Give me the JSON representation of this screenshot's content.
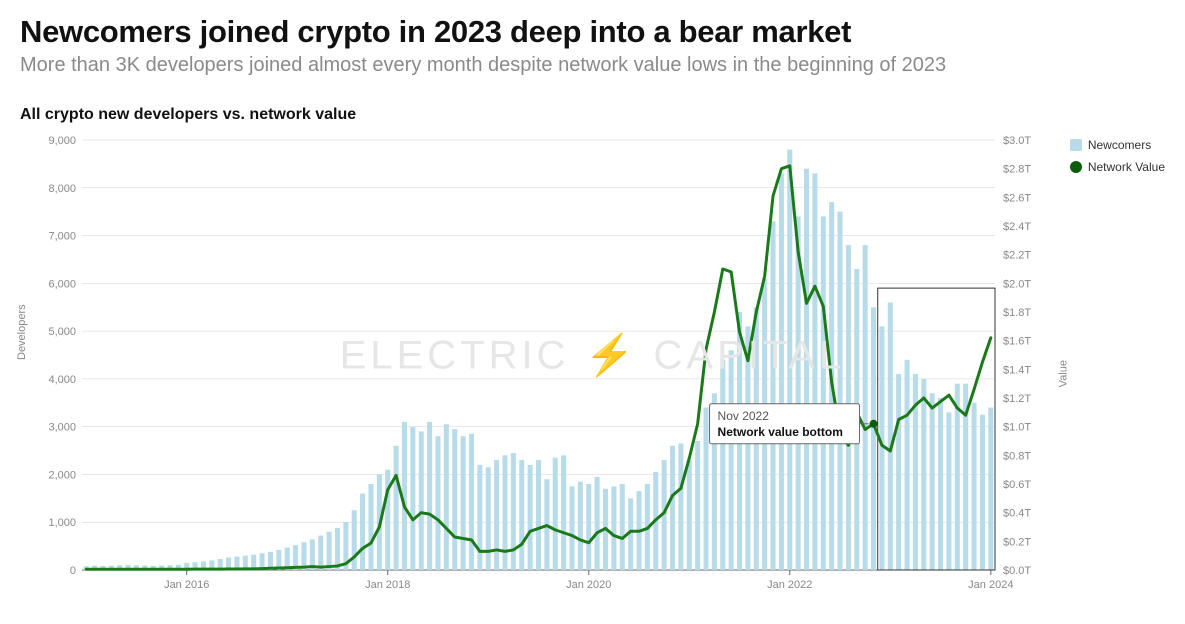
{
  "title": "Newcomers joined crypto in 2023 deep into a bear market",
  "subtitle": "More than 3K developers joined almost every month despite network value lows in the beginning of 2023",
  "chart_title": "All crypto new developers vs. network value",
  "watermark": "ELECTRIC ⚡ CAPITAL",
  "left_axis": {
    "label": "Developers",
    "min": 0,
    "max": 9000,
    "step": 1000
  },
  "right_axis": {
    "label": "Value",
    "min": 0.0,
    "max": 3.0,
    "step": 0.2,
    "prefix": "$",
    "suffix": "T"
  },
  "x_ticks": [
    "Jan 2016",
    "Jan 2018",
    "Jan 2020",
    "Jan 2022",
    "Jan 2024"
  ],
  "colors": {
    "bar": "#b7dbe8",
    "line": "#1a7a1a",
    "line_marker": "#0d5c0d",
    "grid": "#d0d0d0",
    "axis": "#666666",
    "bg": "#ffffff",
    "text": "#111111",
    "muted": "#888888"
  },
  "legend": [
    {
      "label": "Newcomers",
      "color": "#b7dbe8",
      "shape": "square"
    },
    {
      "label": "Network Value",
      "color": "#0d5c0d",
      "shape": "circle"
    }
  ],
  "annotation": {
    "line1": "Nov 2022",
    "line2": "Network value bottom"
  },
  "highlight_range": {
    "start_index": 95,
    "end_index": 108
  },
  "line_stroke_width": 3,
  "bar_width_ratio": 0.6,
  "bars": [
    80,
    90,
    85,
    90,
    100,
    110,
    100,
    95,
    90,
    95,
    100,
    110,
    150,
    160,
    180,
    200,
    230,
    260,
    280,
    300,
    320,
    350,
    380,
    420,
    470,
    520,
    580,
    640,
    720,
    800,
    880,
    1000,
    1250,
    1600,
    1800,
    2000,
    2100,
    2600,
    3100,
    3000,
    2900,
    3100,
    2800,
    3050,
    2950,
    2800,
    2850,
    2200,
    2150,
    2300,
    2400,
    2450,
    2300,
    2200,
    2300,
    1900,
    2350,
    2400,
    1750,
    1850,
    1800,
    1950,
    1700,
    1750,
    1800,
    1500,
    1650,
    1800,
    2050,
    2300,
    2600,
    2650,
    2300,
    2700,
    3400,
    3700,
    4400,
    4600,
    5400,
    5100,
    5500,
    6100,
    7300,
    8300,
    8800,
    7400,
    8400,
    8300,
    7400,
    7700,
    7500,
    6800,
    6300,
    6800,
    5500,
    5100,
    5600,
    4100,
    4400,
    4100,
    4000,
    3700,
    3600,
    3300,
    3900,
    3900,
    3500,
    3250,
    3400
  ],
  "line_values": [
    0.005,
    0.005,
    0.005,
    0.005,
    0.005,
    0.005,
    0.005,
    0.005,
    0.005,
    0.005,
    0.005,
    0.005,
    0.005,
    0.006,
    0.006,
    0.006,
    0.006,
    0.007,
    0.007,
    0.008,
    0.008,
    0.01,
    0.012,
    0.014,
    0.016,
    0.018,
    0.02,
    0.024,
    0.02,
    0.024,
    0.028,
    0.044,
    0.091,
    0.151,
    0.188,
    0.3,
    0.56,
    0.66,
    0.44,
    0.35,
    0.4,
    0.39,
    0.35,
    0.29,
    0.23,
    0.22,
    0.21,
    0.13,
    0.13,
    0.14,
    0.13,
    0.14,
    0.18,
    0.27,
    0.29,
    0.31,
    0.28,
    0.26,
    0.24,
    0.21,
    0.19,
    0.26,
    0.29,
    0.24,
    0.22,
    0.27,
    0.27,
    0.29,
    0.35,
    0.4,
    0.52,
    0.57,
    0.78,
    1.02,
    1.54,
    1.8,
    2.1,
    2.08,
    1.66,
    1.46,
    1.8,
    2.05,
    2.61,
    2.8,
    2.82,
    2.22,
    1.86,
    1.98,
    1.84,
    1.31,
    0.96,
    0.87,
    1.1,
    0.98,
    1.02,
    0.87,
    0.83,
    1.05,
    1.08,
    1.15,
    1.2,
    1.13,
    1.175,
    1.22,
    1.13,
    1.08,
    1.26,
    1.45,
    1.62
  ]
}
